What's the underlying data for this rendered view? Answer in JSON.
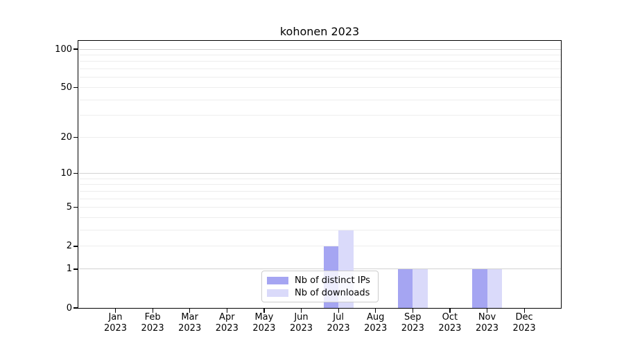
{
  "chart_data": {
    "type": "bar",
    "title": "kohonen 2023",
    "categories": [
      "Jan 2023",
      "Feb 2023",
      "Mar 2023",
      "Apr 2023",
      "May 2023",
      "Jun 2023",
      "Jul 2023",
      "Aug 2023",
      "Sep 2023",
      "Oct 2023",
      "Nov 2023",
      "Dec 2023"
    ],
    "x_tick_line1": [
      "Jan",
      "Feb",
      "Mar",
      "Apr",
      "May",
      "Jun",
      "Jul",
      "Aug",
      "Sep",
      "Oct",
      "Nov",
      "Dec"
    ],
    "x_tick_line2": [
      "2023",
      "2023",
      "2023",
      "2023",
      "2023",
      "2023",
      "2023",
      "2023",
      "2023",
      "2023",
      "2023",
      "2023"
    ],
    "series": [
      {
        "name": "Nb of distinct IPs",
        "color": "#a5a5f2",
        "values": [
          0,
          0,
          0,
          0,
          0,
          0,
          2,
          0,
          1,
          0,
          1,
          0
        ]
      },
      {
        "name": "Nb of downloads",
        "color": "#dadafa",
        "values": [
          0,
          0,
          0,
          0,
          0,
          0,
          3,
          0,
          1,
          0,
          1,
          0
        ]
      }
    ],
    "y_scale": "log1p",
    "y_ticks": [
      0,
      1,
      2,
      5,
      10,
      20,
      50,
      100
    ],
    "y_tick_labels": [
      "0",
      "1",
      "2",
      "5",
      "10",
      "20",
      "50",
      "100"
    ],
    "y_minor_gridlines": [
      2,
      3,
      4,
      5,
      6,
      7,
      8,
      9,
      20,
      30,
      40,
      50,
      60,
      70,
      80,
      90
    ],
    "y_major_gridlines": [
      1,
      10,
      100
    ],
    "ylim": [
      0,
      118
    ],
    "grid": "horizontal",
    "legend_position": "inside-bottom-center"
  },
  "colors": {
    "axis": "#000000",
    "grid_major": "#d2d2d2",
    "grid_minor": "#ededed",
    "series_ips": "#a5a5f2",
    "series_downloads": "#dadafa",
    "legend_border": "#cccccc"
  }
}
